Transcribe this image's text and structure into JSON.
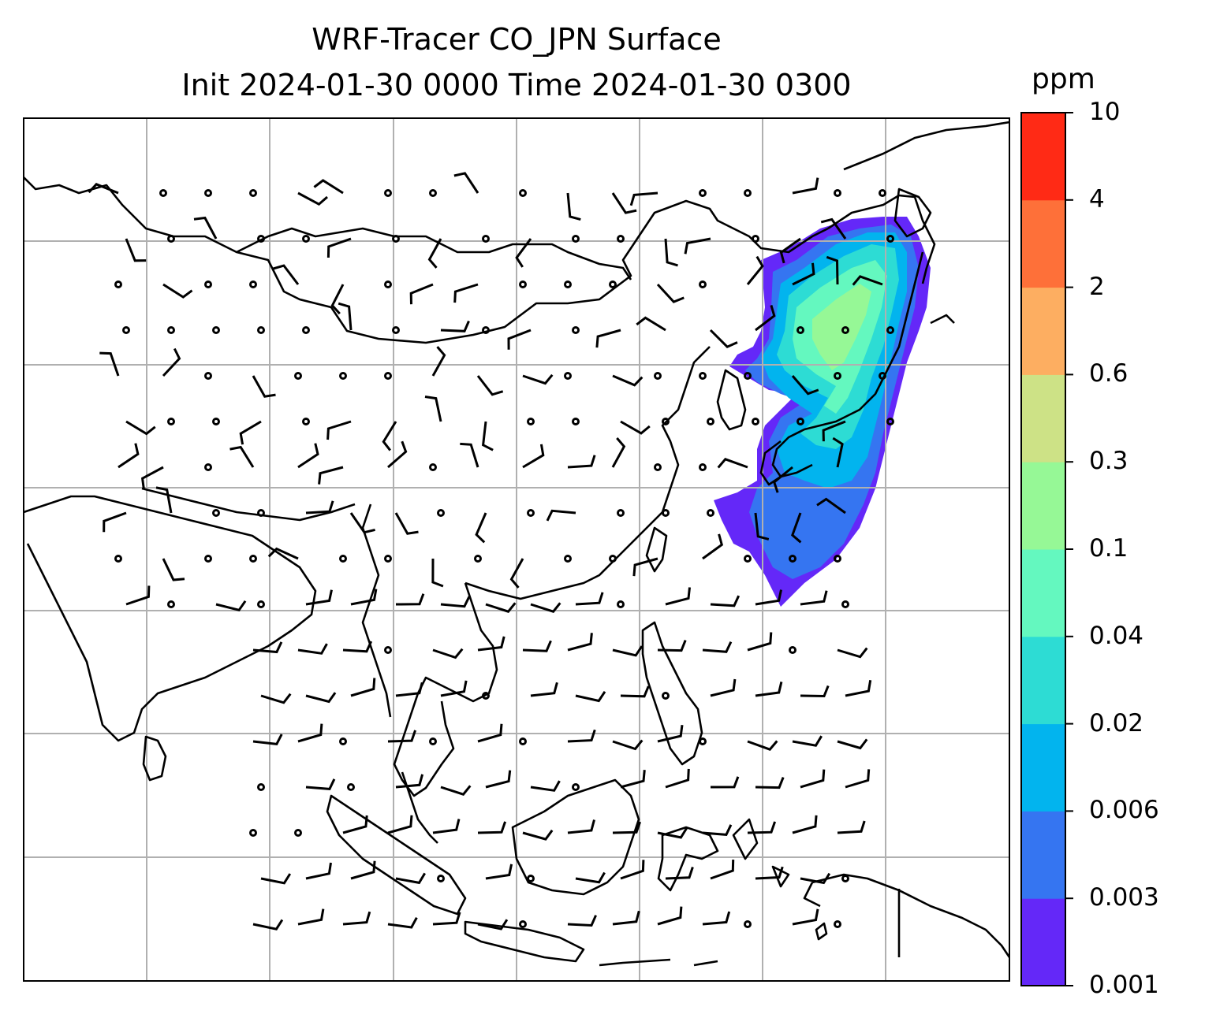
{
  "title": {
    "line1": "WRF-Tracer CO_JPN Surface",
    "line2": "Init 2024-01-30 0000 Time 2024-01-30 0300"
  },
  "colorbar": {
    "unit": "ppm",
    "tick_labels": [
      "0.001",
      "0.003",
      "0.006",
      "0.02",
      "0.04",
      "0.1",
      "0.3",
      "0.6",
      "2",
      "4",
      "10"
    ],
    "levels": [
      0.001,
      0.003,
      0.006,
      0.02,
      0.04,
      0.1,
      0.3,
      0.6,
      2,
      4,
      10
    ],
    "colors": [
      "#6428f8",
      "#3575f1",
      "#02b4ee",
      "#2ddcd4",
      "#64f8bf",
      "#96f896",
      "#cde286",
      "#fdae61",
      "#fe7039",
      "#ff2a15"
    ]
  },
  "map": {
    "projection": "lat-lon",
    "gridlines": true,
    "field": "CO_JPN tracer concentration at surface",
    "overlay": "wind barbs"
  }
}
